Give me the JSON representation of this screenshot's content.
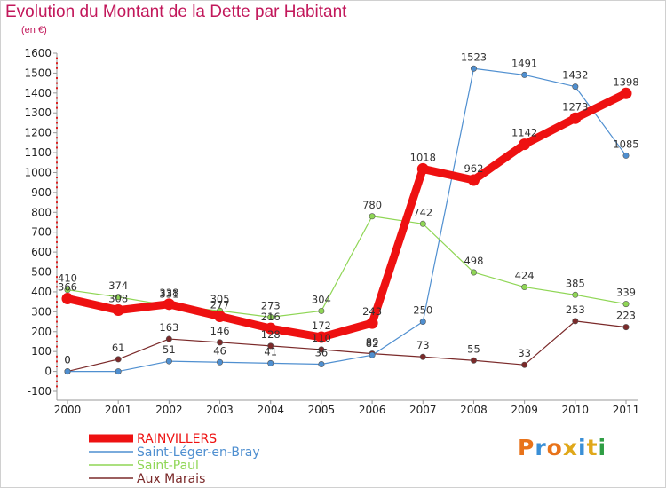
{
  "title": "Evolution du Montant de la Dette par Habitant",
  "subtitle": "(en €)",
  "logo": {
    "text": "Proxiti",
    "colors": [
      "#e8731a",
      "#3a8fd6",
      "#e8731a",
      "#e0a81a",
      "#3a8fd6",
      "#e0a81a",
      "#2f9e44"
    ]
  },
  "chart_data": {
    "type": "line",
    "title": "Evolution du Montant de la Dette par Habitant",
    "subtitle": "(en €)",
    "x": [
      "2000",
      "2001",
      "2002",
      "2003",
      "2004",
      "2005",
      "2006",
      "2007",
      "2008",
      "2009",
      "2010",
      "2011"
    ],
    "ylim": [
      -100,
      1600
    ],
    "yticks": [
      -100,
      0,
      100,
      200,
      300,
      400,
      500,
      600,
      700,
      800,
      900,
      1000,
      1100,
      1200,
      1300,
      1400,
      1500,
      1600
    ],
    "grid": false,
    "legend": "bottom-left",
    "series": [
      {
        "name": "Aux Marais",
        "color": "#7b2a2a",
        "values": [
          0,
          61,
          163,
          146,
          128,
          110,
          89,
          73,
          55,
          33,
          253,
          223
        ],
        "labels": [
          "0",
          "61",
          "163",
          "146",
          "128",
          "110",
          "89",
          "73",
          "55",
          "33",
          "253",
          "223"
        ]
      },
      {
        "name": "Saint-Léger-en-Bray",
        "color": "#4f8fd0",
        "values": [
          0,
          0,
          51,
          46,
          41,
          36,
          82,
          250,
          1523,
          1491,
          1432,
          1085
        ],
        "labels": [
          "0",
          "",
          "51",
          "46",
          "41",
          "36",
          "82",
          "250",
          "1523",
          "1491",
          "1432",
          "1085"
        ]
      },
      {
        "name": "Saint-Paul",
        "color": "#8fd655",
        "values": [
          410,
          374,
          331,
          305,
          273,
          304,
          780,
          742,
          498,
          424,
          385,
          339
        ],
        "labels": [
          "410",
          "374",
          "331",
          "305",
          "273",
          "304",
          "780",
          "742",
          "498",
          "424",
          "385",
          "339"
        ]
      },
      {
        "name": "RAINVILLERS",
        "color": "#ee1111",
        "values": [
          366,
          308,
          338,
          277,
          216,
          172,
          243,
          1018,
          962,
          1142,
          1273,
          1398
        ],
        "labels": [
          "366",
          "308",
          "338",
          "277",
          "216",
          "172",
          "243",
          "1018",
          "962",
          "1142",
          "1273",
          "1398"
        ]
      }
    ],
    "legend_entries": [
      "RAINVILLERS",
      "Saint-Léger-en-Bray",
      "Saint-Paul",
      "Aux Marais"
    ]
  }
}
